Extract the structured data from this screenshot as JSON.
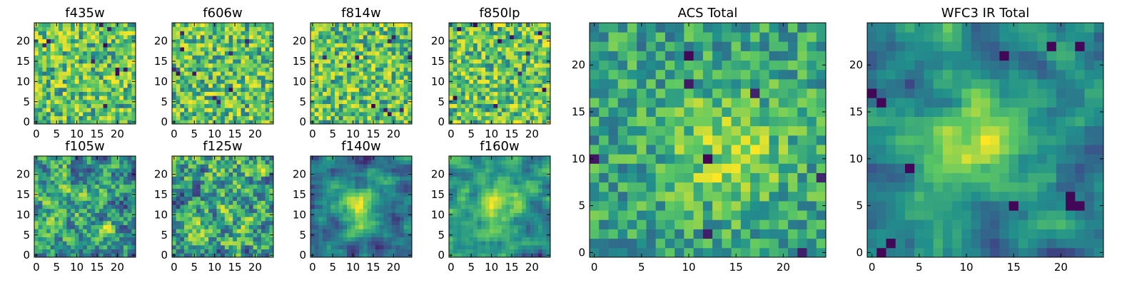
{
  "figure": {
    "description": "Grid of pixel-map panels: 8 individual filters and 2 stacked totals",
    "colormap": [
      "#440154",
      "#3b528b",
      "#21918c",
      "#5ec962",
      "#fde725"
    ]
  },
  "chart_data": [
    {
      "type": "heatmap",
      "title": "f435w",
      "grid": [
        25,
        25
      ],
      "xlim": [
        0,
        24
      ],
      "ylim": [
        0,
        24
      ],
      "xticks": [
        0,
        5,
        10,
        15,
        20
      ],
      "yticks": [
        0,
        5,
        10,
        15,
        20
      ],
      "style": "noise",
      "seed": 11
    },
    {
      "type": "heatmap",
      "title": "f606w",
      "grid": [
        25,
        25
      ],
      "xlim": [
        0,
        24
      ],
      "ylim": [
        0,
        24
      ],
      "xticks": [
        0,
        5,
        10,
        15,
        20
      ],
      "yticks": [
        0,
        5,
        10,
        15,
        20
      ],
      "style": "noise",
      "seed": 23
    },
    {
      "type": "heatmap",
      "title": "f814w",
      "grid": [
        25,
        25
      ],
      "xlim": [
        0,
        24
      ],
      "ylim": [
        0,
        24
      ],
      "xticks": [
        0,
        5,
        10,
        15,
        20
      ],
      "yticks": [
        0,
        5,
        10,
        15,
        20
      ],
      "style": "noise",
      "seed": 37
    },
    {
      "type": "heatmap",
      "title": "f850lp",
      "grid": [
        25,
        25
      ],
      "xlim": [
        0,
        24
      ],
      "ylim": [
        0,
        24
      ],
      "xticks": [
        0,
        5,
        10,
        15,
        20
      ],
      "yticks": [
        0,
        5,
        10,
        15,
        20
      ],
      "style": "noise",
      "seed": 41
    },
    {
      "type": "heatmap",
      "title": "f105w",
      "grid": [
        25,
        25
      ],
      "xlim": [
        0,
        24
      ],
      "ylim": [
        0,
        24
      ],
      "xticks": [
        0,
        5,
        10,
        15,
        20
      ],
      "yticks": [
        0,
        5,
        10,
        15,
        20
      ],
      "style": "smooth",
      "seed": 53
    },
    {
      "type": "heatmap",
      "title": "f125w",
      "grid": [
        25,
        25
      ],
      "xlim": [
        0,
        24
      ],
      "ylim": [
        0,
        24
      ],
      "xticks": [
        0,
        5,
        10,
        15,
        20
      ],
      "yticks": [
        0,
        5,
        10,
        15,
        20
      ],
      "style": "smooth",
      "seed": 67
    },
    {
      "type": "heatmap",
      "title": "f140w",
      "grid": [
        25,
        25
      ],
      "xlim": [
        0,
        24
      ],
      "ylim": [
        0,
        24
      ],
      "xticks": [
        0,
        5,
        10,
        15,
        20
      ],
      "yticks": [
        0,
        5,
        10,
        15,
        20
      ],
      "style": "blob",
      "seed": 71
    },
    {
      "type": "heatmap",
      "title": "f160w",
      "grid": [
        25,
        25
      ],
      "xlim": [
        0,
        24
      ],
      "ylim": [
        0,
        24
      ],
      "xticks": [
        0,
        5,
        10,
        15,
        20
      ],
      "yticks": [
        0,
        5,
        10,
        15,
        20
      ],
      "style": "blob",
      "seed": 83
    },
    {
      "type": "heatmap",
      "title": "ACS Total",
      "grid": [
        25,
        25
      ],
      "xlim": [
        0,
        24
      ],
      "ylim": [
        0,
        24
      ],
      "xticks": [
        0,
        5,
        10,
        15,
        20
      ],
      "yticks": [
        0,
        5,
        10,
        15,
        20
      ],
      "style": "total",
      "seed": 97
    },
    {
      "type": "heatmap",
      "title": "WFC3 IR Total",
      "grid": [
        25,
        25
      ],
      "xlim": [
        0,
        24
      ],
      "ylim": [
        0,
        24
      ],
      "xticks": [
        0,
        5,
        10,
        15,
        20
      ],
      "yticks": [
        0,
        5,
        10,
        15,
        20
      ],
      "style": "irtotal",
      "seed": 101
    }
  ]
}
